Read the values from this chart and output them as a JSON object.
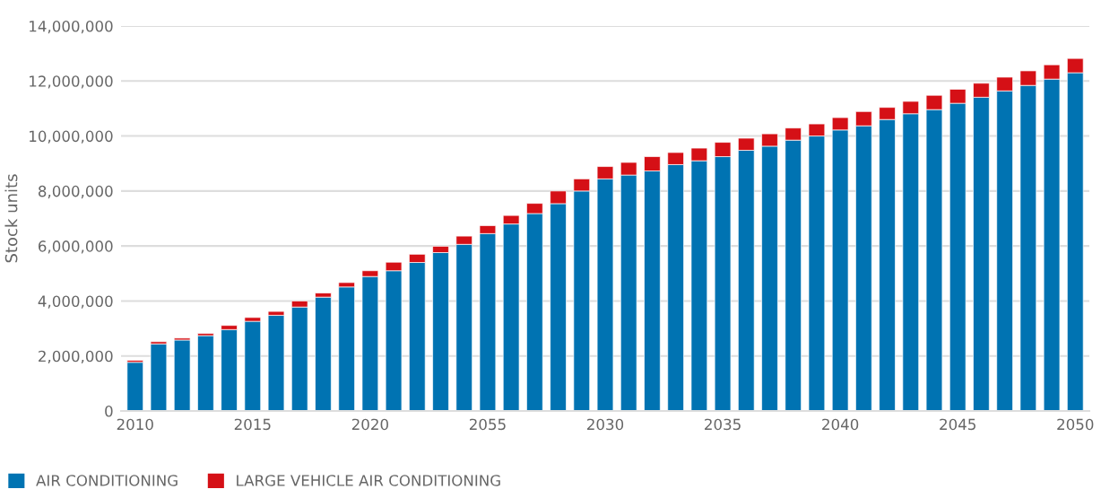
{
  "chart_data": {
    "type": "bar",
    "stacked": true,
    "ylabel": "Stock units",
    "categories": [
      "2010",
      null,
      null,
      null,
      null,
      "2015",
      null,
      null,
      null,
      null,
      "2020",
      null,
      null,
      null,
      null,
      "2055",
      null,
      null,
      null,
      null,
      "2030",
      null,
      null,
      null,
      null,
      "2035",
      null,
      null,
      null,
      null,
      "2040",
      null,
      null,
      null,
      null,
      "2045",
      null,
      null,
      null,
      null,
      "2050"
    ],
    "series": [
      {
        "name": "AIR CONDITIONING",
        "color": "#0073b2",
        "values": [
          1770000,
          2440000,
          2580000,
          2740000,
          2960000,
          3260000,
          3480000,
          3780000,
          4140000,
          4510000,
          4890000,
          5100000,
          5400000,
          5760000,
          6060000,
          6450000,
          6800000,
          7180000,
          7540000,
          8000000,
          8440000,
          8580000,
          8730000,
          8960000,
          9100000,
          9250000,
          9480000,
          9630000,
          9850000,
          10000000,
          10220000,
          10370000,
          10600000,
          10810000,
          10960000,
          11190000,
          11410000,
          11640000,
          11840000,
          12070000,
          12300000
        ]
      },
      {
        "name": "LARGE VEHICLE AIR CONDITIONING",
        "color": "#d51016",
        "values": [
          70000,
          80000,
          70000,
          80000,
          150000,
          140000,
          140000,
          220000,
          150000,
          160000,
          210000,
          310000,
          300000,
          230000,
          300000,
          290000,
          310000,
          370000,
          460000,
          440000,
          450000,
          460000,
          520000,
          440000,
          460000,
          520000,
          440000,
          450000,
          440000,
          440000,
          450000,
          520000,
          440000,
          450000,
          520000,
          510000,
          510000,
          500000,
          530000,
          520000,
          520000
        ]
      }
    ],
    "ylim": [
      0,
      14000000
    ],
    "yticks": [
      {
        "value": 0,
        "label": "0"
      },
      {
        "value": 2000000,
        "label": "2,000,000"
      },
      {
        "value": 4000000,
        "label": "4,000,000"
      },
      {
        "value": 6000000,
        "label": "6,000,000"
      },
      {
        "value": 8000000,
        "label": "8,000,000"
      },
      {
        "value": 10000000,
        "label": "10,000,000"
      },
      {
        "value": 12000000,
        "label": "12,000,000"
      },
      {
        "value": 14000000,
        "label": "14,000,000"
      }
    ],
    "grid": "y",
    "legend": "bottom left"
  }
}
